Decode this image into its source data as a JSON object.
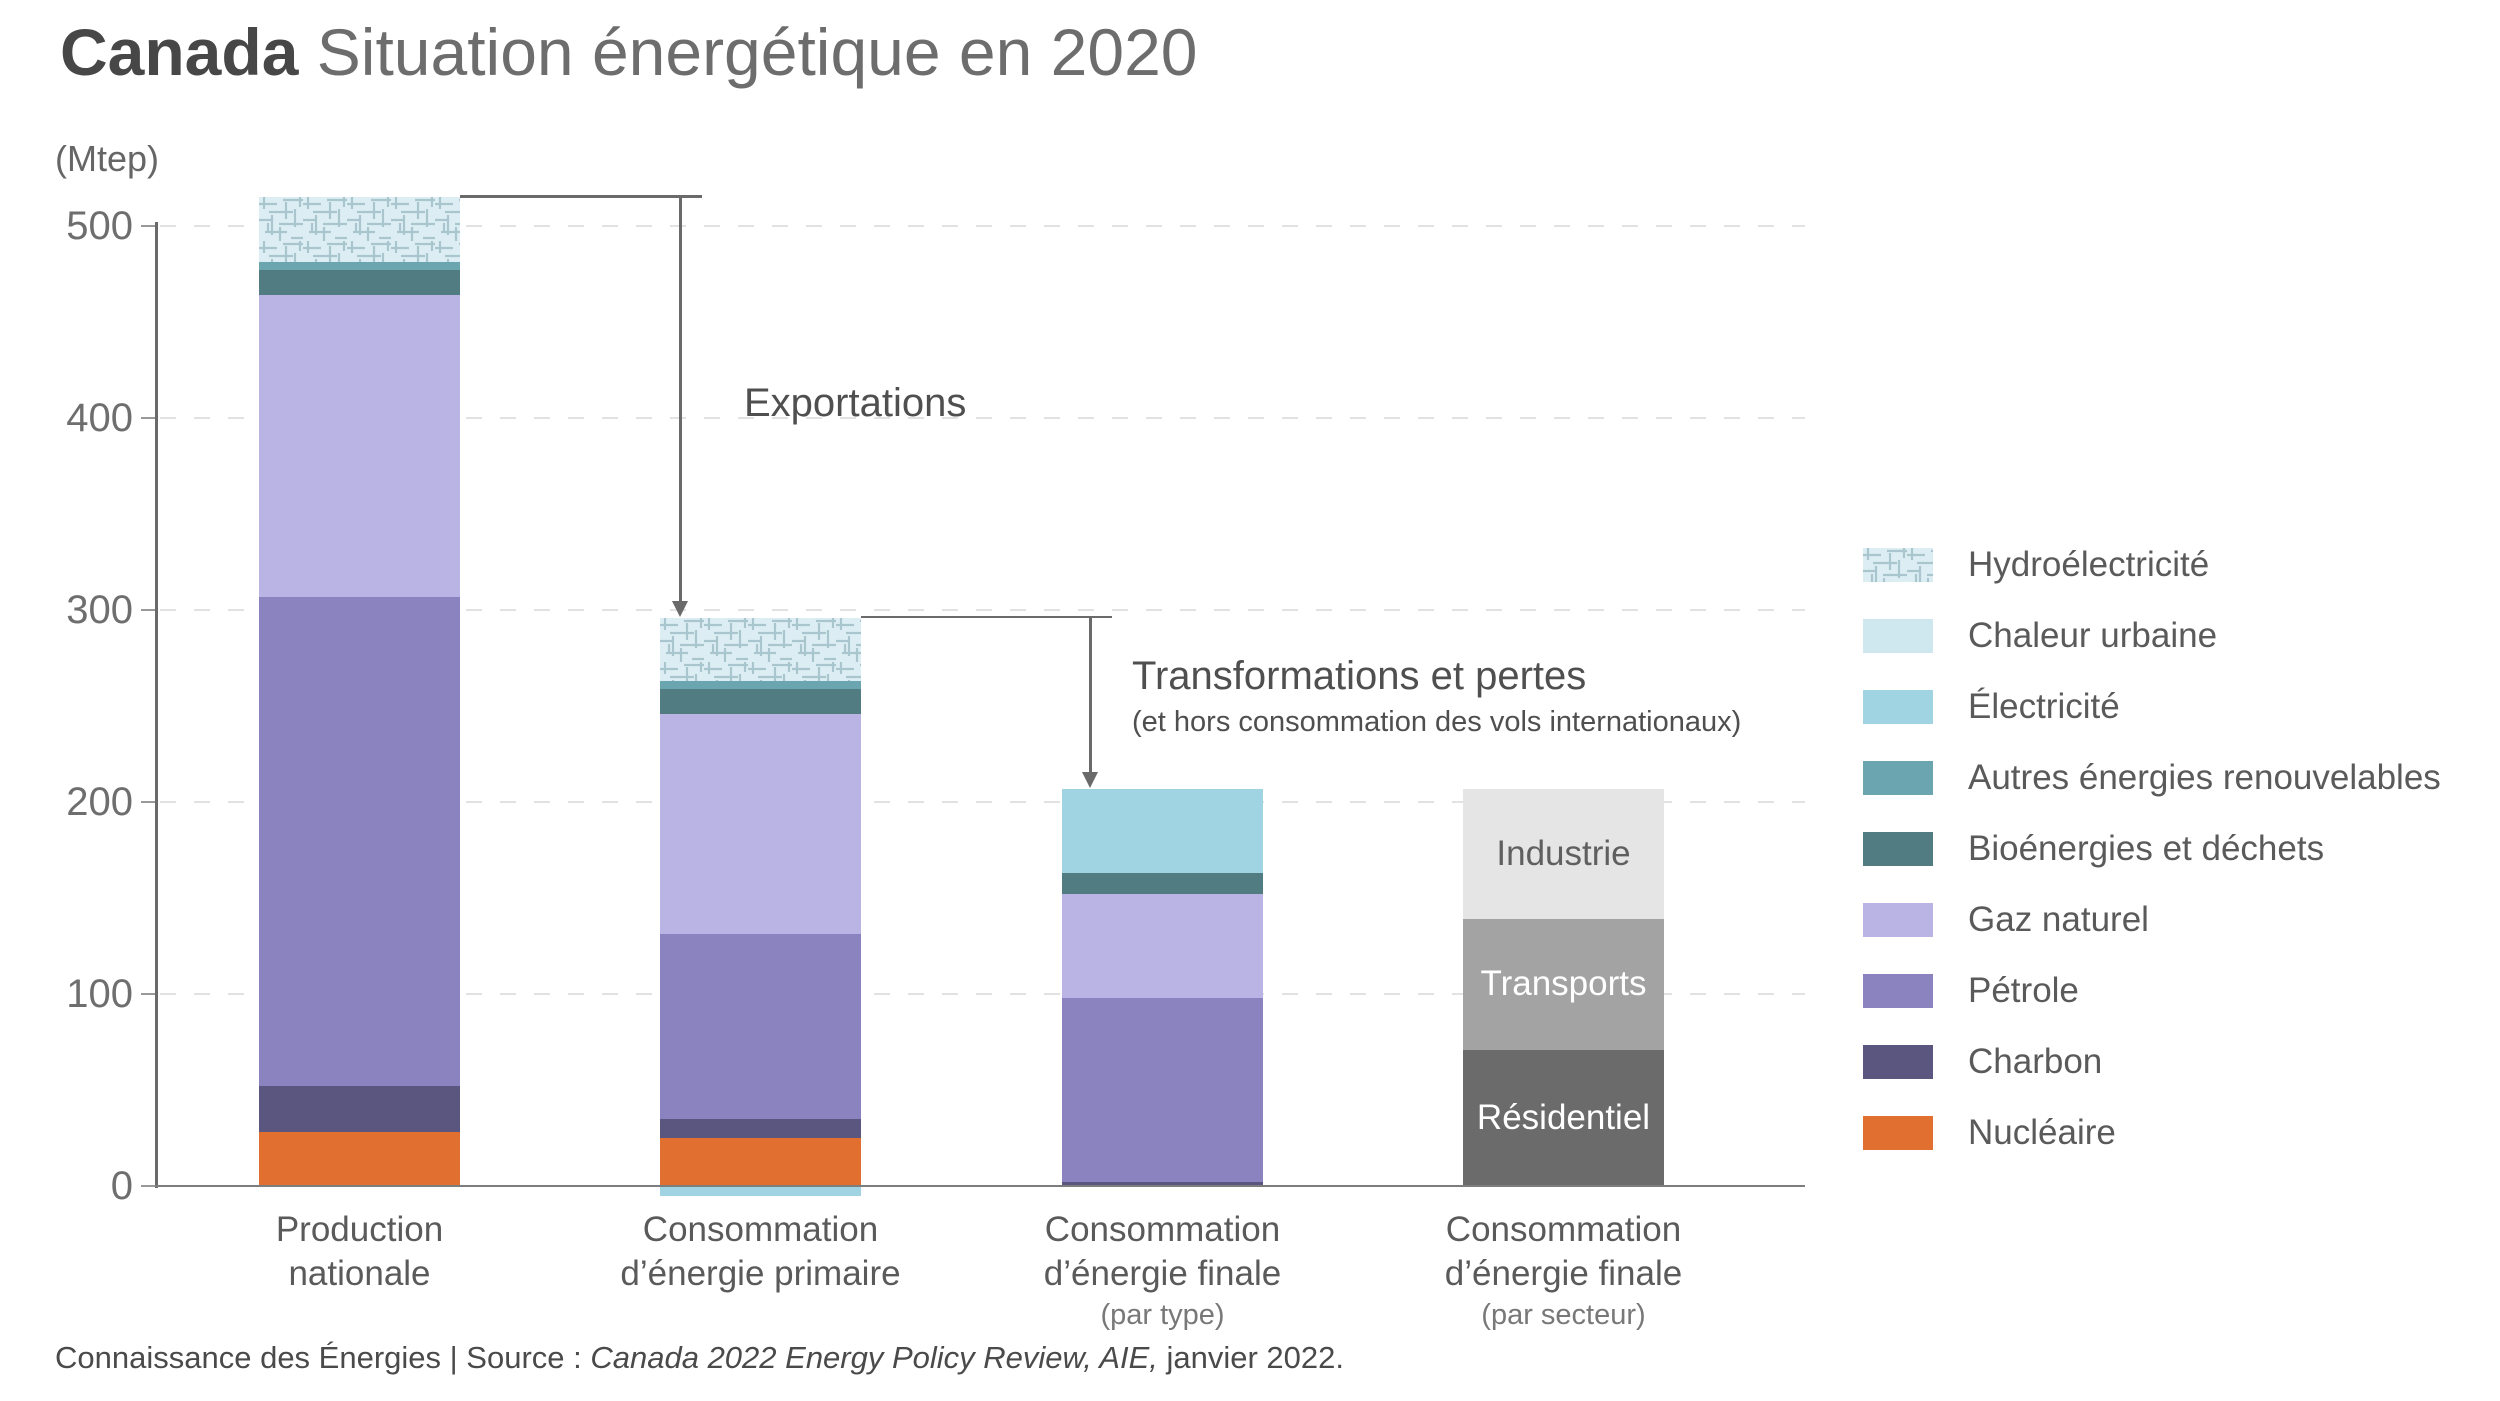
{
  "title": {
    "bold": "Canada",
    "rest": "Situation énergétique en 2020"
  },
  "unit_label": "(Mtep)",
  "annotations": {
    "exportations": {
      "label": "Exportations"
    },
    "transformations": {
      "label": "Transformations et pertes",
      "sub": "(et hors consommation des vols internationaux)"
    }
  },
  "source": {
    "prefix": "Connaissance des Énergies | Source : ",
    "italic": "Canada 2022 Energy Policy Review, AIE,",
    "suffix": " janvier 2022."
  },
  "chart_data": {
    "type": "bar",
    "stacked": true,
    "unit": "Mtep",
    "title": "Canada Situation énergétique en 2020",
    "ylabel": "(Mtep)",
    "ylim": [
      0,
      520
    ],
    "yticks": [
      0,
      100,
      200,
      300,
      400,
      500
    ],
    "grid": "dashed-horizontal",
    "legend_position": "right",
    "palette": {
      "hydro": {
        "hatch": true,
        "bg": "#dceef3",
        "line": "#a9c6cf"
      },
      "chaleur": "#cfe8ef",
      "electricite": "#a0d4e2",
      "autres": "#6ba6b0",
      "bio": "#517c82",
      "gaz": "#b9b4e3",
      "petrole": "#8a83c0",
      "charbon": "#5a5680",
      "nucleaire": "#e17030",
      "industrie": "#e5e5e5",
      "transports": "#a3a3a3",
      "residentiel": "#6b6b6b"
    },
    "legend": [
      {
        "key": "hydro",
        "label": "Hydroélectricité"
      },
      {
        "key": "chaleur",
        "label": "Chaleur urbaine"
      },
      {
        "key": "electricite",
        "label": "Électricité"
      },
      {
        "key": "autres",
        "label": "Autres énergies renouvelables"
      },
      {
        "key": "bio",
        "label": "Bioénergies et déchets"
      },
      {
        "key": "gaz",
        "label": "Gaz naturel"
      },
      {
        "key": "petrole",
        "label": "Pétrole"
      },
      {
        "key": "charbon",
        "label": "Charbon"
      },
      {
        "key": "nucleaire",
        "label": "Nucléaire"
      }
    ],
    "bars": [
      {
        "category_lines": [
          "Production",
          "nationale"
        ],
        "category_sub": "",
        "segments": [
          {
            "key": "nucleaire",
            "value": 28
          },
          {
            "key": "charbon",
            "value": 24
          },
          {
            "key": "petrole",
            "value": 255
          },
          {
            "key": "gaz",
            "value": 157
          },
          {
            "key": "bio",
            "value": 13
          },
          {
            "key": "autres",
            "value": 4
          },
          {
            "key": "hydro",
            "value": 34
          }
        ]
      },
      {
        "category_lines": [
          "Consommation",
          "d’énergie primaire"
        ],
        "category_sub": "",
        "segments": [
          {
            "key": "electricite",
            "value": -5
          },
          {
            "key": "nucleaire",
            "value": 25
          },
          {
            "key": "charbon",
            "value": 10
          },
          {
            "key": "petrole",
            "value": 96
          },
          {
            "key": "gaz",
            "value": 115
          },
          {
            "key": "bio",
            "value": 13
          },
          {
            "key": "autres",
            "value": 4
          },
          {
            "key": "hydro",
            "value": 33
          }
        ]
      },
      {
        "category_lines": [
          "Consommation",
          "d’énergie finale"
        ],
        "category_sub": "(par type)",
        "segments": [
          {
            "key": "charbon",
            "value": 2
          },
          {
            "key": "petrole",
            "value": 96
          },
          {
            "key": "gaz",
            "value": 54
          },
          {
            "key": "bio",
            "value": 11
          },
          {
            "key": "electricite",
            "value": 44
          }
        ]
      },
      {
        "category_lines": [
          "Consommation",
          "d’énergie finale"
        ],
        "category_sub": "(par secteur)",
        "segments": [
          {
            "key": "residentiel",
            "value": 71,
            "label": "Résidentiel",
            "label_color": "#ffffff"
          },
          {
            "key": "transports",
            "value": 68,
            "label": "Transports",
            "label_color": "#ffffff"
          },
          {
            "key": "industrie",
            "value": 68,
            "label": "Industrie",
            "label_color": "#5f5f5f"
          }
        ]
      }
    ]
  }
}
